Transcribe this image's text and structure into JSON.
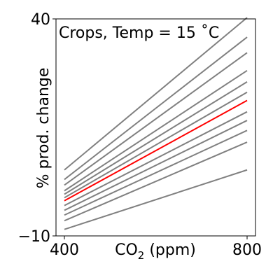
{
  "chart_data": {
    "type": "line",
    "title": "Crops, Temp = 15 ˚C",
    "xlabel_main": "CO",
    "xlabel_sub": "2",
    "xlabel_unit": " (ppm)",
    "ylabel": "% prod. change",
    "xlim": [
      400,
      800
    ],
    "ylim": [
      -10,
      40
    ],
    "xticks": [
      {
        "value": 400,
        "label": "400"
      },
      {
        "value": 800,
        "label": "800"
      }
    ],
    "yticks": [
      {
        "value": 40,
        "label": "40"
      },
      {
        "value": -10,
        "label": "−10"
      }
    ],
    "x": [
      400,
      800
    ],
    "series": [
      {
        "values": [
          -8.5,
          5.2
        ],
        "color": "#808080"
      },
      {
        "values": [
          -6.5,
          11.6
        ],
        "color": "#808080"
      },
      {
        "values": [
          -5.2,
          14.3
        ],
        "color": "#808080"
      },
      {
        "values": [
          -4.1,
          16.6
        ],
        "color": "#808080"
      },
      {
        "values": [
          -3.0,
          18.6
        ],
        "color": "#808080"
      },
      {
        "values": [
          -1.9,
          21.2
        ],
        "color": "#ff0000"
      },
      {
        "values": [
          -1.2,
          23.1
        ],
        "color": "#808080"
      },
      {
        "values": [
          -0.4,
          25.5
        ],
        "color": "#808080"
      },
      {
        "values": [
          0.4,
          28.1
        ],
        "color": "#808080"
      },
      {
        "values": [
          1.7,
          32.2
        ],
        "color": "#808080"
      },
      {
        "values": [
          3.0,
          35.8
        ],
        "color": "#808080"
      },
      {
        "values": [
          5.2,
          40.3
        ],
        "color": "#808080"
      }
    ]
  }
}
